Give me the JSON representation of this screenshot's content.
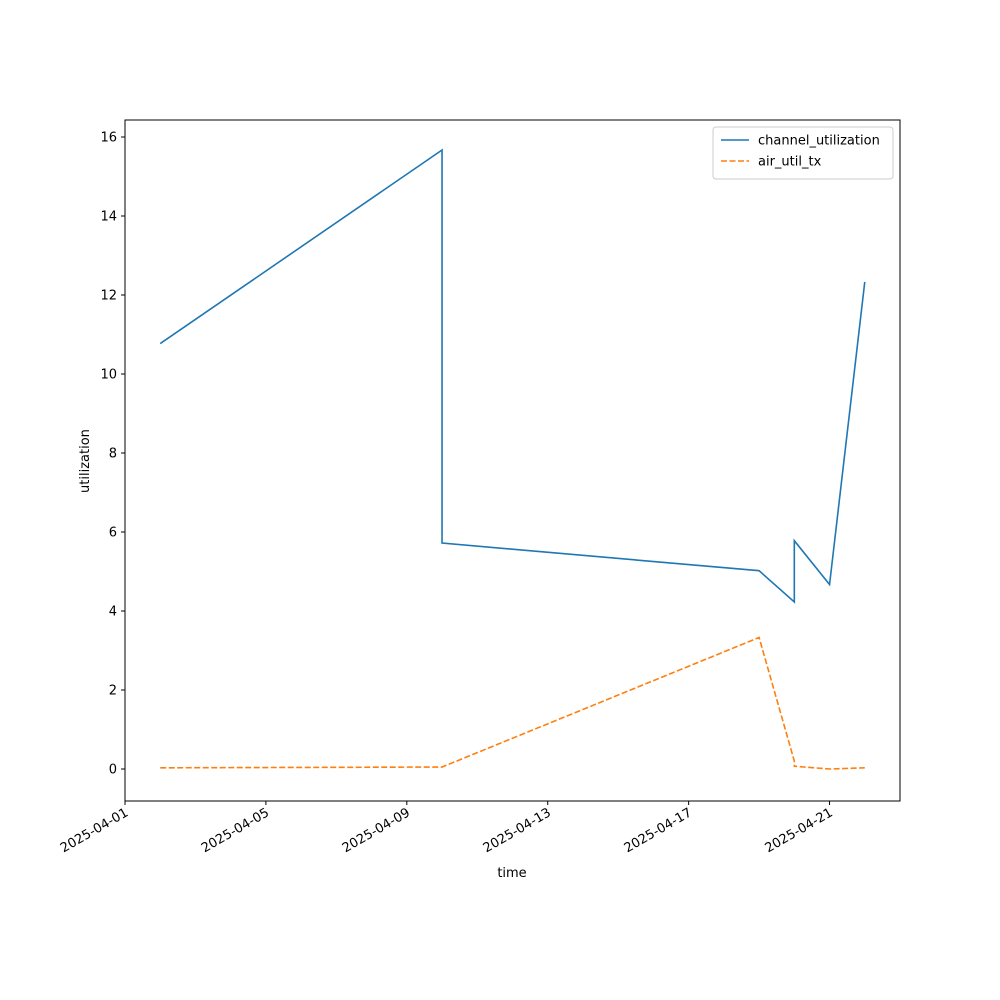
{
  "chart_data": {
    "type": "line",
    "x": [
      "2025-04-02",
      "2025-04-10",
      "2025-04-10",
      "2025-04-19",
      "2025-04-20",
      "2025-04-20",
      "2025-04-20",
      "2025-04-21",
      "2025-04-22"
    ],
    "series": [
      {
        "name": "channel_utilization",
        "color": "#1f77b4",
        "linestyle": "solid",
        "values": [
          10.77,
          15.67,
          5.72,
          5.02,
          4.23,
          5.57,
          5.78,
          4.67,
          12.33
        ]
      },
      {
        "name": "air_util_tx",
        "color": "#ff7f0e",
        "linestyle": "dashed",
        "values": [
          0.03,
          0.05,
          0.05,
          3.33,
          0.2,
          0.05,
          0.07,
          0.0,
          0.03
        ]
      }
    ],
    "xlabel": "time",
    "ylabel": "utilization",
    "xlim": [
      "2025-04-01",
      "2025-04-23"
    ],
    "xticks": [
      "2025-04-01",
      "2025-04-05",
      "2025-04-09",
      "2025-04-13",
      "2025-04-17",
      "2025-04-21"
    ],
    "ylim": [
      -0.81,
      16.43
    ],
    "yticks": [
      0,
      2,
      4,
      6,
      8,
      10,
      12,
      14,
      16
    ],
    "legend": "upper right"
  }
}
